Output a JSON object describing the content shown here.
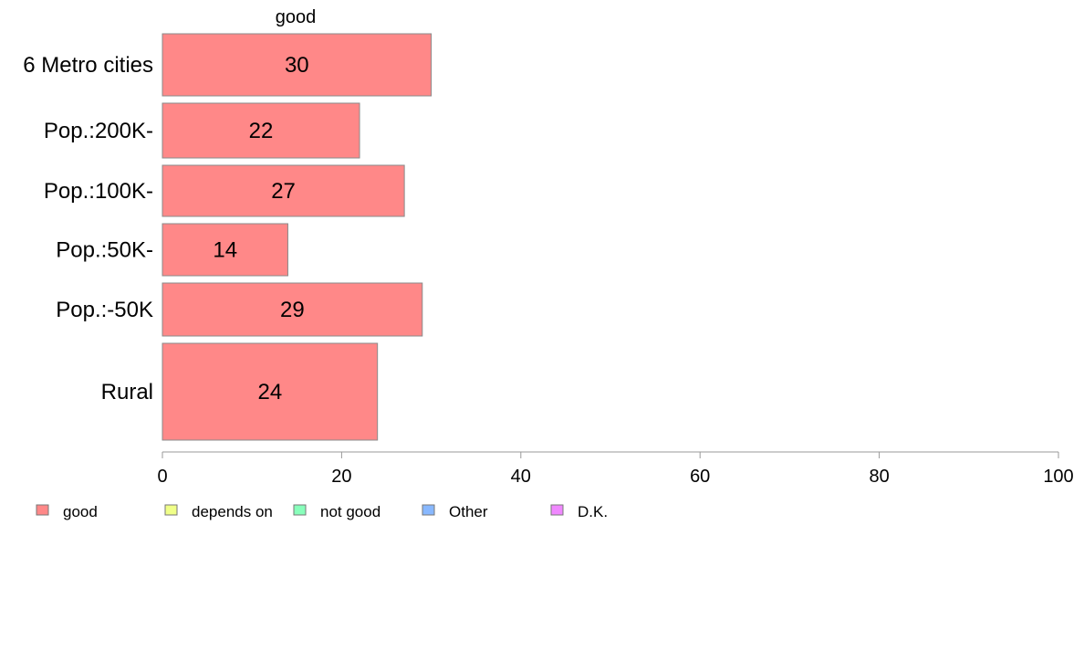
{
  "chart_data": {
    "type": "bar",
    "orientation": "horizontal",
    "series": [
      {
        "name": "good",
        "values": [
          30,
          22,
          27,
          14,
          29,
          24
        ]
      }
    ],
    "categories": [
      "6 Metro cities",
      "Pop.:200K-",
      "Pop.:100K-",
      "Pop.:50K-",
      "Pop.:-50K",
      "Rural"
    ],
    "value_labels": [
      "30",
      "22",
      "27",
      "14",
      "29",
      "24"
    ],
    "xlim": [
      0,
      100
    ],
    "xticks": [
      0,
      20,
      40,
      60,
      80,
      100
    ],
    "xtick_labels": [
      "0",
      "20",
      "40",
      "60",
      "80",
      "100"
    ],
    "grid": false,
    "legend_position": "bottom-left",
    "legend": [
      {
        "label": "good",
        "color": "#ff8888"
      },
      {
        "label": "depends on",
        "color": "#f0ff88"
      },
      {
        "label": "not good",
        "color": "#88ffbb"
      },
      {
        "label": "Other",
        "color": "#88b8ff"
      },
      {
        "label": "D.K.",
        "color": "#f088ff"
      }
    ],
    "bar_color": "#ff8888"
  }
}
